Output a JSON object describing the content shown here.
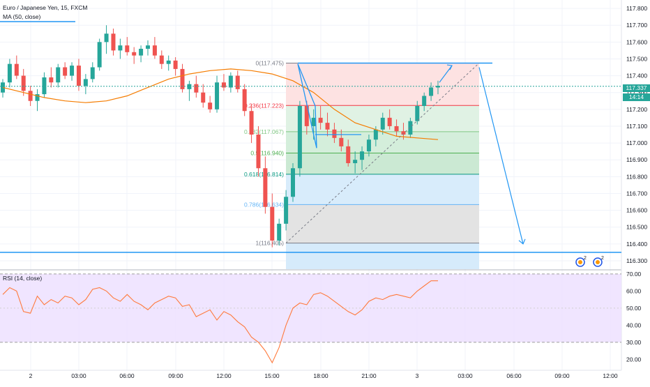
{
  "header": {
    "symbol_title": "Euro / Japanese Yen, 15, FXCM",
    "ma_label": "MA (50, close)",
    "rsi_label": "RSI (14, close)"
  },
  "price_axis": {
    "ticks": [
      "117.800",
      "117.700",
      "117.600",
      "117.500",
      "117.400",
      "117.300",
      "117.200",
      "117.100",
      "117.000",
      "116.900",
      "116.800",
      "116.700",
      "116.600",
      "116.500",
      "116.400",
      "116.300"
    ],
    "ylim": [
      116.25,
      117.85
    ],
    "current_price": "117.337",
    "countdown": "14:14"
  },
  "rsi_axis": {
    "ticks": [
      "70.00",
      "60.00",
      "50.00",
      "40.00",
      "30.00",
      "20.00"
    ],
    "ylim": [
      14,
      72
    ],
    "band": [
      30,
      70
    ]
  },
  "time_axis": {
    "ticks": [
      "2",
      "03:00",
      "06:00",
      "09:00",
      "12:00",
      "15:00",
      "18:00",
      "21:00",
      "3",
      "03:00",
      "06:00",
      "09:00",
      "12:00"
    ]
  },
  "fib": {
    "levels": [
      {
        "label": "0(117.475)",
        "value": 117.475,
        "color": "#787b86"
      },
      {
        "label": "0.236(117.223)",
        "value": 117.223,
        "color": "#f23645"
      },
      {
        "label": "0.382(117.067)",
        "value": 117.067,
        "color": "#81c784"
      },
      {
        "label": "0.5(116.940)",
        "value": 116.94,
        "color": "#4caf50"
      },
      {
        "label": "0.618(116.814)",
        "value": 116.814,
        "color": "#089981"
      },
      {
        "label": "0.786(116.634)",
        "value": 116.634,
        "color": "#64b5f6"
      },
      {
        "label": "1(116.405)",
        "value": 116.405,
        "color": "#787b86"
      }
    ]
  },
  "colors": {
    "up": "#26a69a",
    "down": "#ef5350",
    "ma": "#f57c00",
    "rsi": "#ff7a3d",
    "line": "#2196f3",
    "rsi_band": "#ede0ff"
  },
  "chart_data": [
    {
      "type": "candlestick",
      "title": "Euro / Japanese Yen, 15, FXCM",
      "ylim": [
        116.25,
        117.85
      ],
      "support_level": 116.35,
      "ma_50": [
        117.33,
        117.3,
        117.27,
        117.25,
        117.24,
        117.25,
        117.28,
        117.33,
        117.38,
        117.41,
        117.43,
        117.44,
        117.43,
        117.41,
        117.37,
        117.3,
        117.2,
        117.12,
        117.08,
        117.04,
        117.03,
        117.02
      ],
      "candles": [
        [
          117.3,
          117.38,
          117.27,
          117.36
        ],
        [
          117.36,
          117.5,
          117.33,
          117.47
        ],
        [
          117.47,
          117.52,
          117.38,
          117.4
        ],
        [
          117.4,
          117.44,
          117.28,
          117.31
        ],
        [
          117.31,
          117.34,
          117.22,
          117.25
        ],
        [
          117.25,
          117.32,
          117.19,
          117.29
        ],
        [
          117.29,
          117.42,
          117.27,
          117.39
        ],
        [
          117.39,
          117.45,
          117.33,
          117.36
        ],
        [
          117.36,
          117.47,
          117.33,
          117.45
        ],
        [
          117.45,
          117.48,
          117.38,
          117.4
        ],
        [
          117.4,
          117.48,
          117.37,
          117.46
        ],
        [
          117.46,
          117.5,
          117.31,
          117.34
        ],
        [
          117.34,
          117.41,
          117.29,
          117.38
        ],
        [
          117.38,
          117.48,
          117.36,
          117.45
        ],
        [
          117.45,
          117.62,
          117.43,
          117.6
        ],
        [
          117.6,
          117.7,
          117.53,
          117.65
        ],
        [
          117.65,
          117.68,
          117.52,
          117.55
        ],
        [
          117.55,
          117.62,
          117.5,
          117.58
        ],
        [
          117.58,
          117.63,
          117.52,
          117.54
        ],
        [
          117.54,
          117.57,
          117.47,
          117.52
        ],
        [
          117.52,
          117.58,
          117.48,
          117.56
        ],
        [
          117.56,
          117.61,
          117.52,
          117.58
        ],
        [
          117.58,
          117.63,
          117.5,
          117.52
        ],
        [
          117.52,
          117.55,
          117.44,
          117.47
        ],
        [
          117.47,
          117.52,
          117.43,
          117.49
        ],
        [
          117.49,
          117.51,
          117.4,
          117.44
        ],
        [
          117.44,
          117.47,
          117.3,
          117.32
        ],
        [
          117.32,
          117.37,
          117.25,
          117.35
        ],
        [
          117.35,
          117.4,
          117.27,
          117.3
        ],
        [
          117.3,
          117.35,
          117.21,
          117.24
        ],
        [
          117.24,
          117.28,
          117.18,
          117.2
        ],
        [
          117.2,
          117.4,
          117.18,
          117.36
        ],
        [
          117.36,
          117.41,
          117.31,
          117.33
        ],
        [
          117.33,
          117.42,
          117.3,
          117.4
        ],
        [
          117.4,
          117.43,
          117.3,
          117.32
        ],
        [
          117.32,
          117.35,
          117.16,
          117.19
        ],
        [
          117.19,
          117.23,
          117.0,
          117.05
        ],
        [
          117.05,
          117.1,
          116.8,
          116.85
        ],
        [
          116.85,
          116.92,
          116.58,
          116.62
        ],
        [
          116.62,
          116.7,
          116.38,
          116.42
        ],
        [
          116.42,
          116.55,
          116.39,
          116.52
        ],
        [
          116.52,
          116.72,
          116.48,
          116.68
        ],
        [
          116.68,
          116.88,
          116.65,
          116.85
        ],
        [
          116.85,
          117.25,
          116.8,
          117.22
        ],
        [
          117.22,
          117.25,
          117.05,
          117.1
        ],
        [
          117.1,
          117.2,
          117.02,
          117.15
        ],
        [
          117.15,
          117.22,
          117.08,
          117.12
        ],
        [
          117.12,
          117.18,
          117.04,
          117.08
        ],
        [
          117.08,
          117.12,
          117.0,
          117.03
        ],
        [
          117.03,
          117.08,
          116.95,
          116.98
        ],
        [
          116.98,
          117.02,
          116.86,
          116.88
        ],
        [
          116.88,
          116.95,
          116.82,
          116.9
        ],
        [
          116.9,
          116.98,
          116.84,
          116.95
        ],
        [
          116.95,
          117.05,
          116.92,
          117.02
        ],
        [
          117.02,
          117.1,
          116.98,
          117.08
        ],
        [
          117.08,
          117.18,
          117.05,
          117.15
        ],
        [
          117.15,
          117.2,
          117.08,
          117.1
        ],
        [
          117.1,
          117.14,
          117.04,
          117.07
        ],
        [
          117.07,
          117.12,
          117.02,
          117.05
        ],
        [
          117.05,
          117.15,
          117.03,
          117.13
        ],
        [
          117.13,
          117.25,
          117.11,
          117.22
        ],
        [
          117.22,
          117.3,
          117.19,
          117.28
        ],
        [
          117.28,
          117.36,
          117.25,
          117.33
        ],
        [
          117.33,
          117.37,
          117.29,
          117.34
        ]
      ]
    },
    {
      "type": "line",
      "title": "RSI (14, close)",
      "ylim": [
        14,
        72
      ],
      "values": [
        58,
        62,
        60,
        48,
        47,
        57,
        52,
        55,
        53,
        57,
        56,
        52,
        55,
        61,
        62,
        60,
        56,
        54,
        58,
        54,
        52,
        49,
        53,
        55,
        57,
        56,
        51,
        52,
        45,
        47,
        49,
        43,
        48,
        46,
        42,
        39,
        33,
        30,
        25,
        18,
        27,
        40,
        50,
        53,
        52,
        58,
        59,
        57,
        54,
        51,
        48,
        46,
        49,
        54,
        56,
        55,
        57,
        58,
        57,
        56,
        60,
        63,
        66,
        66
      ]
    }
  ]
}
